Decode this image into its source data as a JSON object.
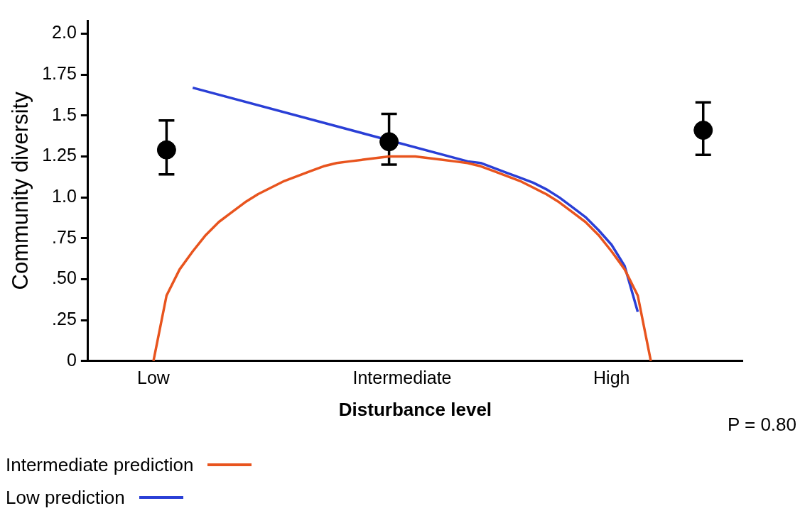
{
  "chart_data": {
    "type": "line",
    "xlabel": "Disturbance level",
    "ylabel": "Community diversity",
    "categories": [
      null,
      null,
      null,
      null,
      null,
      "Low",
      null,
      null,
      null,
      null,
      null,
      null,
      null,
      null,
      null,
      null,
      null,
      null,
      null,
      null,
      null,
      null,
      null,
      null,
      "Intermediate",
      null,
      null,
      null,
      null,
      null,
      null,
      null,
      null,
      null,
      null,
      null,
      null,
      null,
      null,
      null,
      "High",
      null,
      null,
      null,
      null,
      null,
      null,
      null,
      null,
      null,
      null
    ],
    "ylim": [
      0,
      2.08
    ],
    "yticks": [
      0,
      {
        "value": 0.25,
        "label": ".25"
      },
      {
        "value": 0.5,
        "label": ".50"
      },
      {
        "value": 0.75,
        "label": ".75"
      },
      {
        "value": 1,
        "label": "1.0"
      },
      1.25,
      1.5,
      1.75,
      {
        "value": 2,
        "label": "2.0"
      }
    ],
    "series": [
      {
        "type": "scatter",
        "marker": "circle",
        "color": "#000000",
        "values": [
          null,
          null,
          null,
          null,
          null,
          null,
          1.29,
          null,
          null,
          null,
          null,
          null,
          null,
          null,
          null,
          null,
          null,
          null,
          null,
          null,
          null,
          null,
          null,
          1.34,
          null,
          null,
          null,
          null,
          null,
          null,
          null,
          null,
          null,
          null,
          null,
          null,
          null,
          null,
          null,
          null,
          null,
          null,
          null,
          null,
          null,
          null,
          null,
          1.41,
          null,
          null,
          null
        ],
        "errors": [
          null,
          null,
          null,
          null,
          null,
          null,
          [
            1.14,
            1.47
          ],
          null,
          null,
          null,
          null,
          null,
          null,
          null,
          null,
          null,
          null,
          null,
          null,
          null,
          null,
          null,
          null,
          [
            1.2,
            1.51
          ],
          null,
          null,
          null,
          null,
          null,
          null,
          null,
          null,
          null,
          null,
          null,
          null,
          null,
          null,
          null,
          null,
          null,
          null,
          null,
          null,
          null,
          null,
          null,
          [
            1.26,
            1.58
          ],
          null,
          null,
          null
        ]
      },
      {
        "name": "Intermediate prediction",
        "color": "#e8541e",
        "values": [
          null,
          null,
          null,
          null,
          null,
          0,
          0.4,
          0.56,
          0.67,
          0.77,
          0.85,
          0.91,
          0.97,
          1.02,
          1.06,
          1.1,
          1.13,
          1.16,
          1.19,
          1.21,
          1.22,
          1.23,
          1.24,
          1.25,
          1.25,
          1.25,
          1.24,
          1.23,
          1.22,
          1.21,
          1.19,
          1.16,
          1.13,
          1.1,
          1.06,
          1.02,
          0.97,
          0.91,
          0.85,
          0.77,
          0.67,
          0.56,
          0.4,
          0,
          null,
          null,
          null,
          null,
          null,
          null,
          null
        ]
      },
      {
        "name": "Low prediction",
        "color": "#2a3fd6",
        "values": [
          null,
          null,
          null,
          null,
          null,
          null,
          null,
          null,
          1.67,
          null,
          null,
          null,
          null,
          null,
          null,
          null,
          null,
          null,
          null,
          null,
          null,
          null,
          null,
          null,
          null,
          null,
          null,
          null,
          null,
          1.22,
          1.21,
          1.18,
          1.15,
          1.12,
          1.09,
          1.05,
          1.0,
          0.94,
          0.88,
          0.8,
          0.71,
          0.58,
          0.3,
          null,
          null,
          null,
          null,
          null,
          null,
          null,
          null
        ]
      }
    ],
    "grid": false,
    "legend": "bottom left",
    "annotations": [
      "P = 0.80"
    ]
  }
}
